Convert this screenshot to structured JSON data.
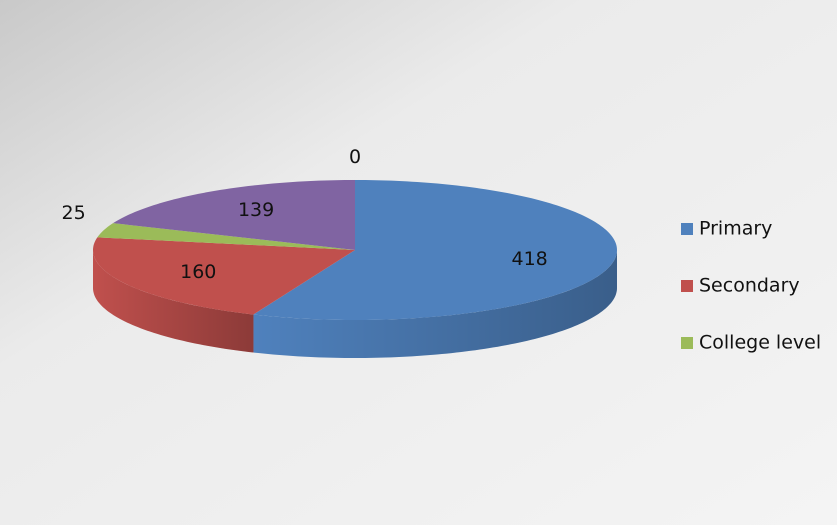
{
  "chart_data": {
    "type": "pie3d",
    "categories": [
      "Primary",
      "Secondary",
      "College level",
      null,
      null
    ],
    "values": [
      418,
      160,
      25,
      139,
      0
    ],
    "colors": [
      "#4f81bd",
      "#c0504d",
      "#9bbb59",
      "#8064a2",
      "#4bacc6"
    ],
    "legend": "right"
  }
}
